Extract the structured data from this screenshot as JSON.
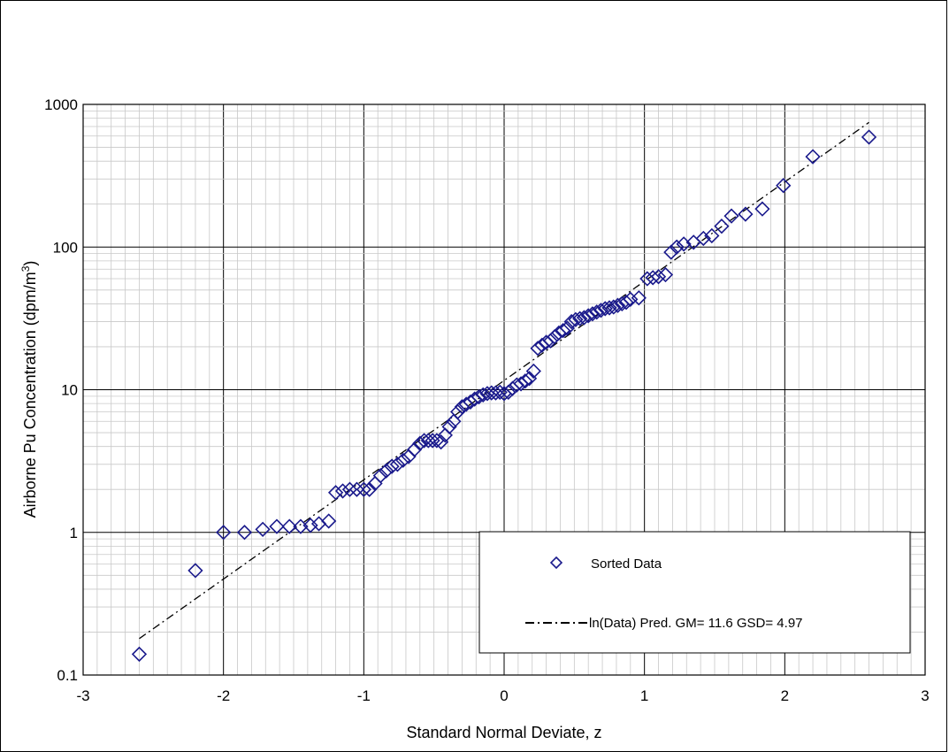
{
  "chart_data": {
    "type": "scatter",
    "title": "",
    "xlabel": "Standard Normal Deviate, z",
    "ylabel_main": "Airborne Pu Concentration (dpm/m",
    "ylabel_sup": "3",
    "ylabel_end": ")",
    "xlim": [
      -3,
      3
    ],
    "ylim": [
      0.1,
      1000
    ],
    "y_scale": "log",
    "grid": true,
    "x_ticks": [
      "-3",
      "-2",
      "-1",
      "0",
      "1",
      "2",
      "3"
    ],
    "y_ticks": [
      "0.1",
      "1",
      "10",
      "100",
      "1000"
    ],
    "legend_position": "bottom-right",
    "series": [
      {
        "name": "Sorted Data",
        "marker": "diamond",
        "color": "#1a1a8c",
        "points": [
          [
            -2.6,
            0.14
          ],
          [
            -2.2,
            0.54
          ],
          [
            -2.0,
            1.0
          ],
          [
            -1.85,
            1.0
          ],
          [
            -1.72,
            1.05
          ],
          [
            -1.62,
            1.1
          ],
          [
            -1.53,
            1.1
          ],
          [
            -1.45,
            1.1
          ],
          [
            -1.38,
            1.12
          ],
          [
            -1.32,
            1.15
          ],
          [
            -1.25,
            1.2
          ],
          [
            -1.2,
            1.9
          ],
          [
            -1.15,
            1.95
          ],
          [
            -1.1,
            2.0
          ],
          [
            -1.05,
            2.0
          ],
          [
            -1.0,
            2.0
          ],
          [
            -0.96,
            2.0
          ],
          [
            -0.92,
            2.2
          ],
          [
            -0.88,
            2.5
          ],
          [
            -0.84,
            2.7
          ],
          [
            -0.8,
            2.9
          ],
          [
            -0.76,
            3.0
          ],
          [
            -0.72,
            3.2
          ],
          [
            -0.68,
            3.4
          ],
          [
            -0.64,
            3.8
          ],
          [
            -0.6,
            4.2
          ],
          [
            -0.57,
            4.4
          ],
          [
            -0.54,
            4.4
          ],
          [
            -0.51,
            4.4
          ],
          [
            -0.48,
            4.4
          ],
          [
            -0.45,
            4.3
          ],
          [
            -0.42,
            4.8
          ],
          [
            -0.39,
            5.5
          ],
          [
            -0.36,
            6.0
          ],
          [
            -0.33,
            7.0
          ],
          [
            -0.3,
            7.6
          ],
          [
            -0.27,
            7.9
          ],
          [
            -0.24,
            8.2
          ],
          [
            -0.21,
            8.6
          ],
          [
            -0.18,
            8.9
          ],
          [
            -0.15,
            9.2
          ],
          [
            -0.12,
            9.4
          ],
          [
            -0.09,
            9.5
          ],
          [
            -0.06,
            9.5
          ],
          [
            -0.03,
            9.6
          ],
          [
            0.0,
            9.4
          ],
          [
            0.03,
            9.6
          ],
          [
            0.06,
            10.2
          ],
          [
            0.09,
            10.8
          ],
          [
            0.12,
            11.0
          ],
          [
            0.15,
            11.5
          ],
          [
            0.18,
            12.0
          ],
          [
            0.21,
            13.5
          ],
          [
            0.24,
            19.5
          ],
          [
            0.27,
            20.5
          ],
          [
            0.3,
            21.5
          ],
          [
            0.33,
            22.0
          ],
          [
            0.36,
            23.5
          ],
          [
            0.39,
            25.0
          ],
          [
            0.42,
            26.0
          ],
          [
            0.45,
            27.0
          ],
          [
            0.48,
            30.0
          ],
          [
            0.51,
            31.0
          ],
          [
            0.54,
            31.5
          ],
          [
            0.57,
            32.0
          ],
          [
            0.6,
            33.0
          ],
          [
            0.63,
            34.0
          ],
          [
            0.66,
            35.0
          ],
          [
            0.69,
            36.0
          ],
          [
            0.72,
            37.0
          ],
          [
            0.75,
            37.5
          ],
          [
            0.78,
            38.0
          ],
          [
            0.81,
            39.0
          ],
          [
            0.84,
            40.0
          ],
          [
            0.87,
            41.0
          ],
          [
            0.9,
            43.0
          ],
          [
            0.96,
            44.0
          ],
          [
            1.02,
            60.0
          ],
          [
            1.06,
            61.0
          ],
          [
            1.1,
            62.0
          ],
          [
            1.15,
            64.0
          ],
          [
            1.19,
            92.0
          ],
          [
            1.23,
            100.0
          ],
          [
            1.28,
            105.0
          ],
          [
            1.35,
            108.0
          ],
          [
            1.42,
            115.0
          ],
          [
            1.48,
            120.0
          ],
          [
            1.55,
            140.0
          ],
          [
            1.62,
            165.0
          ],
          [
            1.72,
            170.0
          ],
          [
            1.84,
            185.0
          ],
          [
            1.99,
            270.0
          ],
          [
            2.2,
            430.0
          ],
          [
            2.6,
            590.0
          ]
        ]
      },
      {
        "name": "ln(Data) Pred. GM= 11.6 GSD= 4.97",
        "style": "dash-dot",
        "color": "#000000",
        "points": [
          [
            -2.6,
            0.18
          ],
          [
            2.6,
            748
          ]
        ]
      }
    ]
  }
}
